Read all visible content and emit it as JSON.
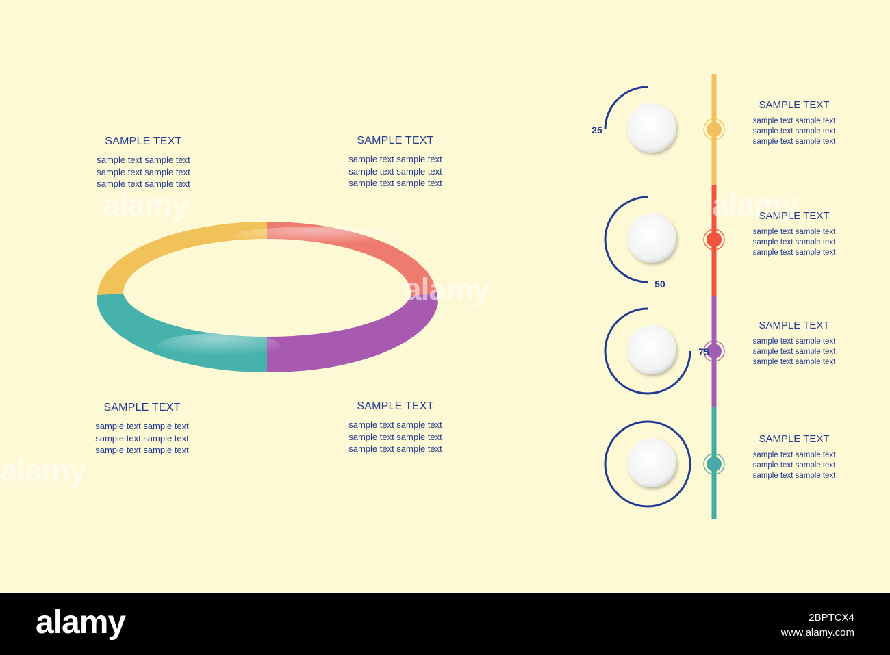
{
  "left_blocks": [
    {
      "title": "SAMPLE TEXT",
      "lines": [
        "sample text  sample text",
        "sample text  sample text",
        "sample text  sample text"
      ]
    },
    {
      "title": "SAMPLE TEXT",
      "lines": [
        "sample text  sample text",
        "sample text  sample text",
        "sample text  sample text"
      ]
    },
    {
      "title": "SAMPLE TEXT",
      "lines": [
        "sample text  sample text",
        "sample text  sample text",
        "sample text  sample text"
      ]
    },
    {
      "title": "SAMPLE TEXT",
      "lines": [
        "sample text  sample text",
        "sample text  sample text",
        "sample text  sample text"
      ]
    }
  ],
  "ring": {
    "segments": [
      {
        "color": "#f2c25a"
      },
      {
        "color": "#ee7b70"
      },
      {
        "color": "#a75ab0"
      },
      {
        "color": "#47b2ac"
      }
    ]
  },
  "timeline": {
    "steps": [
      {
        "value": "25",
        "color": "#f0c15e",
        "title": "SAMPLE TEXT",
        "lines": [
          "sample text  sample text",
          "sample text  sample text",
          "sample text  sample text"
        ]
      },
      {
        "value": "50",
        "color": "#f0543e",
        "title": "SAMPLE TEXT",
        "lines": [
          "sample text  sample text",
          "sample text  sample text",
          "sample text  sample text"
        ]
      },
      {
        "value": "75",
        "color": "#a25eb5",
        "title": "SAMPLE TEXT",
        "lines": [
          "sample text  sample text",
          "sample text  sample text",
          "sample text  sample text"
        ]
      },
      {
        "value": "",
        "color": "#48a9a7",
        "title": "SAMPLE TEXT",
        "lines": [
          "sample text  sample text",
          "sample text  sample text",
          "sample text  sample text"
        ]
      }
    ],
    "arc_color": "#1f3a8f"
  },
  "footer": {
    "logo": "alamy",
    "image_id": "2BPTCX4",
    "site": "www.alamy.com"
  }
}
